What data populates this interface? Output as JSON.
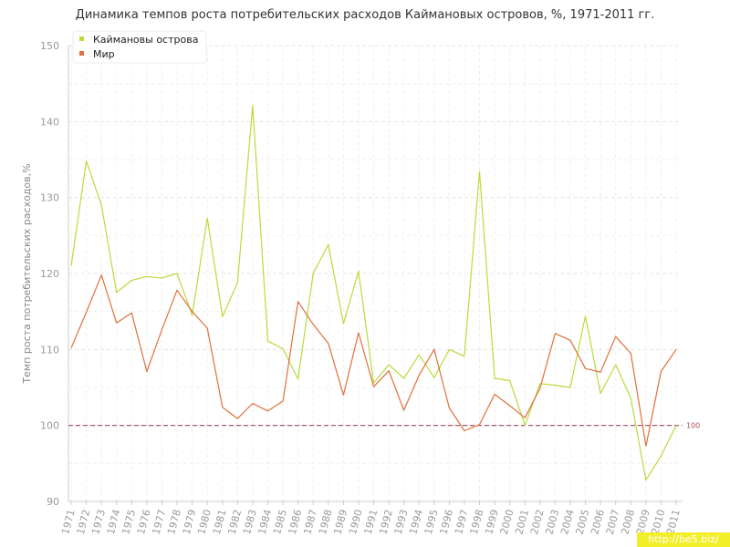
{
  "chart_data": {
    "type": "line",
    "title": "Динамика темпов роста потребительских расходов Каймановых островов, %, 1971-2011 гг.",
    "ylabel": "Темп роста потребительских расходов,%",
    "xlabel": "",
    "ylim": [
      90,
      150
    ],
    "yticks": [
      90,
      100,
      110,
      120,
      130,
      140,
      150
    ],
    "grid": true,
    "legend_position": "top-left",
    "categories": [
      "1971",
      "1972",
      "1973",
      "1974",
      "1975",
      "1976",
      "1977",
      "1978",
      "1979",
      "1980",
      "1981",
      "1982",
      "1983",
      "1984",
      "1985",
      "1986",
      "1987",
      "1988",
      "1989",
      "1990",
      "1991",
      "1992",
      "1993",
      "1994",
      "1995",
      "1996",
      "1997",
      "1998",
      "1999",
      "2000",
      "2001",
      "2002",
      "2003",
      "2004",
      "2005",
      "2006",
      "2007",
      "2008",
      "2009",
      "2010",
      "2011"
    ],
    "series": [
      {
        "name": "Каймановы острова",
        "color": "#b8dc3c",
        "values": [
          121.0,
          134.8,
          129.0,
          117.5,
          119.1,
          119.6,
          119.4,
          120.0,
          114.5,
          127.3,
          114.3,
          118.8,
          142.1,
          111.1,
          110.1,
          106.1,
          120.0,
          123.8,
          113.4,
          120.3,
          105.6,
          108.0,
          106.2,
          109.3,
          106.3,
          110.0,
          109.1,
          133.4,
          106.2,
          105.9,
          100.0,
          105.5,
          105.3,
          105.0,
          114.4,
          104.2,
          108.0,
          103.6,
          92.8,
          96.0,
          100.0
        ]
      },
      {
        "name": "Мир",
        "color": "#e0703c",
        "values": [
          110.2,
          114.9,
          119.8,
          113.5,
          114.8,
          107.1,
          112.6,
          117.8,
          115.0,
          112.8,
          102.4,
          100.9,
          102.9,
          101.9,
          103.2,
          116.3,
          113.3,
          110.8,
          104.0,
          112.2,
          105.1,
          107.2,
          102.0,
          106.6,
          110.0,
          102.3,
          99.3,
          100.1,
          104.1,
          102.6,
          101.0,
          104.9,
          112.1,
          111.2,
          107.5,
          107.0,
          111.7,
          109.5,
          97.3,
          107.1,
          110.0
        ]
      }
    ],
    "reference_line": {
      "value": 100,
      "label": "100",
      "color": "#a8475f"
    }
  },
  "watermark": "http://be5.biz/"
}
